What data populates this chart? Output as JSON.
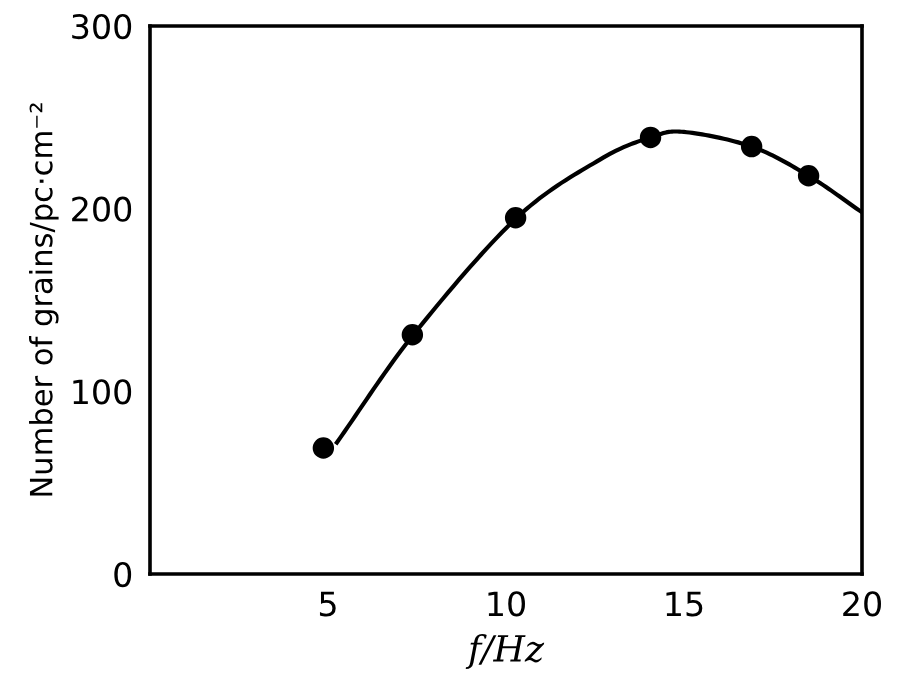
{
  "chart_data": {
    "type": "scatter",
    "xlabel": "f/Hz",
    "ylabel": "Number of grains/pc·cm⁻²",
    "xlim": [
      0,
      20
    ],
    "ylim": [
      0,
      300
    ],
    "xticks": [
      5,
      10,
      15,
      20
    ],
    "yticks": [
      0,
      100,
      200,
      300
    ],
    "grid": false,
    "marker": "circle",
    "series": [
      {
        "color": "#000000",
        "x": [
          4.87,
          7.37,
          10.27,
          14.06,
          16.9,
          18.5
        ],
        "values": [
          69,
          131,
          195,
          239,
          234,
          218
        ]
      },
      {
        "type": "line",
        "color": "#000000",
        "marker": "none",
        "line_style": "solid",
        "x": [
          5.25,
          7.4,
          10.3,
          12.65,
          14.06,
          15,
          16.9,
          18.5,
          20
        ],
        "values": [
          72,
          131,
          195,
          227,
          239,
          242,
          234,
          218,
          198
        ]
      }
    ]
  }
}
